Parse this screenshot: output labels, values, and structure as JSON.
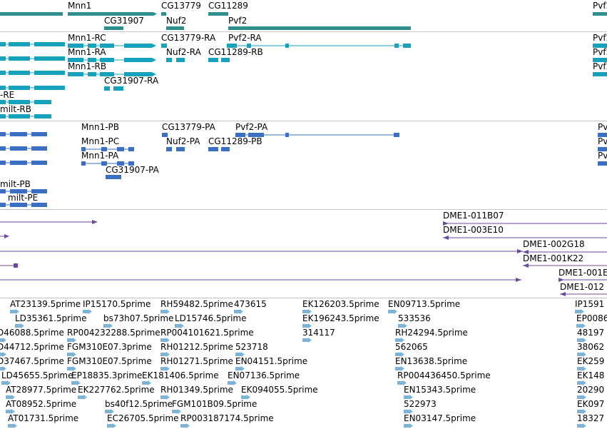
{
  "colors": {
    "gene": "#2f8f8f",
    "flybase_transcript": "#16a1bd",
    "refseq_transcript": "#3b6fc4",
    "clone": "#6a4a9e",
    "est": "#7db3d6",
    "divider": "#c4c4c4"
  },
  "tracks": [
    {
      "id": "genes",
      "features": [
        {
          "label": "Mnn1",
          "shape": "solid"
        },
        {
          "label": "CG13779",
          "shape": "solid"
        },
        {
          "label": "CG11289",
          "shape": "solid"
        },
        {
          "label": "Pvf2",
          "shape": "solid"
        },
        {
          "label": "CG31907",
          "shape": "solid"
        },
        {
          "label": "Nuf2",
          "shape": "solid"
        },
        {
          "label": "Pvf2",
          "shape": "solid"
        },
        {
          "label": "",
          "shape": "solid"
        }
      ]
    },
    {
      "id": "flybase-transcripts",
      "features": [
        {
          "label": "",
          "shape": "exons"
        },
        {
          "label": "Mnn1-RC",
          "shape": "exons"
        },
        {
          "label": "CG13779-RA",
          "shape": "exons"
        },
        {
          "label": "Pvf2-RA",
          "shape": "exons"
        },
        {
          "label": "Pvf2",
          "shape": "exons"
        },
        {
          "label": "",
          "shape": "exons"
        },
        {
          "label": "Mnn1-RA",
          "shape": "exons"
        },
        {
          "label": "Nuf2-RA",
          "shape": "exons"
        },
        {
          "label": "CG11289-RB",
          "shape": "exons"
        },
        {
          "label": "Pvf2",
          "shape": "exons"
        },
        {
          "label": "",
          "shape": "exons"
        },
        {
          "label": "Mnn1-RB",
          "shape": "exons"
        },
        {
          "label": "Pvf2",
          "shape": "exons"
        },
        {
          "label": "CG31907-RA",
          "shape": "exons"
        },
        {
          "label": "-RE",
          "shape": "exons"
        },
        {
          "label": "milt-RB",
          "shape": "exons"
        }
      ]
    },
    {
      "id": "refseq-transcripts",
      "features": [
        {
          "label": "",
          "shape": "exons"
        },
        {
          "label": "Mnn1-PB",
          "shape": "exons"
        },
        {
          "label": "CG13779-PA",
          "shape": "exons"
        },
        {
          "label": "Pvf2-PA",
          "shape": "exons"
        },
        {
          "label": "Pv",
          "shape": "exons"
        },
        {
          "label": "",
          "shape": "exons"
        },
        {
          "label": "Mnn1-PC",
          "shape": "exons"
        },
        {
          "label": "Nuf2-PA",
          "shape": "exons"
        },
        {
          "label": "CG11289-PB",
          "shape": "exons"
        },
        {
          "label": "Pv",
          "shape": "exons"
        },
        {
          "label": "",
          "shape": "exons"
        },
        {
          "label": "Mnn1-PA",
          "shape": "exons"
        },
        {
          "label": "Pv",
          "shape": "exons"
        },
        {
          "label": "CG31907-PA",
          "shape": "exons"
        },
        {
          "label": "milt-PB",
          "shape": "exons"
        },
        {
          "label": "milt-PE",
          "shape": "exons"
        }
      ]
    },
    {
      "id": "clones",
      "features": [
        {
          "label": "",
          "shape": "line"
        },
        {
          "label": "DME1-011B07",
          "shape": "line"
        },
        {
          "label": "",
          "shape": "line"
        },
        {
          "label": "DME1-003E10",
          "shape": "line"
        },
        {
          "label": "",
          "shape": "line"
        },
        {
          "label": "DME1-002G18",
          "shape": "line"
        },
        {
          "label": "",
          "shape": "line"
        },
        {
          "label": "DME1-001K22",
          "shape": "line"
        },
        {
          "label": "",
          "shape": "line"
        },
        {
          "label": "DME1-001E",
          "shape": "line"
        },
        {
          "label": "DME1-012",
          "shape": "line"
        }
      ]
    },
    {
      "id": "ests",
      "features": [
        {
          "label": "AT23139.5prime",
          "shape": "est"
        },
        {
          "label": "IP15170.5prime",
          "shape": "est"
        },
        {
          "label": "RH59482.5prime",
          "shape": "est"
        },
        {
          "label": "473615",
          "shape": "est"
        },
        {
          "label": "EK126203.5prime",
          "shape": "est"
        },
        {
          "label": "EN09713.5prime",
          "shape": "est"
        },
        {
          "label": "IP1591",
          "shape": "est"
        },
        {
          "label": "LD35361.5prime",
          "shape": "est"
        },
        {
          "label": "bs73h07.5prime",
          "shape": "est"
        },
        {
          "label": "LD15746.5prime",
          "shape": "est"
        },
        {
          "label": "EK196243.5prime",
          "shape": "est"
        },
        {
          "label": "533536",
          "shape": "est"
        },
        {
          "label": "EP0086",
          "shape": "est"
        },
        {
          "label": "D46088.5prime",
          "shape": "est"
        },
        {
          "label": "RP004232288.5prime",
          "shape": "est"
        },
        {
          "label": "RP004101621.5prime",
          "shape": "est"
        },
        {
          "label": "314117",
          "shape": "est"
        },
        {
          "label": "RH24294.5prime",
          "shape": "est"
        },
        {
          "label": "48197",
          "shape": "est"
        },
        {
          "label": "D44712.5prime",
          "shape": "est"
        },
        {
          "label": "FGM310E07.3prime",
          "shape": "est"
        },
        {
          "label": "RH01212.5prime",
          "shape": "est"
        },
        {
          "label": "523718",
          "shape": "est"
        },
        {
          "label": "562065",
          "shape": "est"
        },
        {
          "label": "38062",
          "shape": "est"
        },
        {
          "label": "D37467.5prime",
          "shape": "est"
        },
        {
          "label": "FGM310E07.5prime",
          "shape": "est"
        },
        {
          "label": "RH01271.5prime",
          "shape": "est"
        },
        {
          "label": "EN04151.5prime",
          "shape": "est"
        },
        {
          "label": "EN13638.5prime",
          "shape": "est"
        },
        {
          "label": "EK259",
          "shape": "est"
        },
        {
          "label": "LD45655.5prime",
          "shape": "est"
        },
        {
          "label": "EP18835.3prime",
          "shape": "est"
        },
        {
          "label": "EK181406.5prime",
          "shape": "est"
        },
        {
          "label": "EN07136.5prime",
          "shape": "est"
        },
        {
          "label": "RP004436450.5prime",
          "shape": "est"
        },
        {
          "label": "EK148",
          "shape": "est"
        },
        {
          "label": "AT28977.5prime",
          "shape": "est"
        },
        {
          "label": "EK227762.5prime",
          "shape": "est"
        },
        {
          "label": "RH01349.5prime",
          "shape": "est"
        },
        {
          "label": "EK094055.5prime",
          "shape": "est"
        },
        {
          "label": "EN15343.5prime",
          "shape": "est"
        },
        {
          "label": "20290",
          "shape": "est"
        },
        {
          "label": "AT08952.5prime",
          "shape": "est"
        },
        {
          "label": "bs40f12.5prime",
          "shape": "est"
        },
        {
          "label": "FGM101B09.5prime",
          "shape": "est"
        },
        {
          "label": "522973",
          "shape": "est"
        },
        {
          "label": "EK097",
          "shape": "est"
        },
        {
          "label": "AT01731.5prime",
          "shape": "est"
        },
        {
          "label": "EC26705.5prime",
          "shape": "est"
        },
        {
          "label": "RP003187174.5prime",
          "shape": "est"
        },
        {
          "label": "EN03147.5prime",
          "shape": "est"
        },
        {
          "label": "18327",
          "shape": "est"
        }
      ]
    }
  ]
}
